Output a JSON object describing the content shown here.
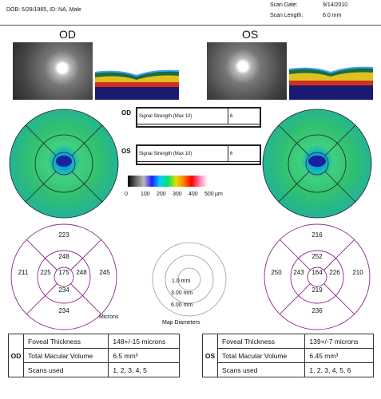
{
  "header": {
    "patient_line": "DOB: 5/28/1965, ID: NA, Male",
    "scan_date_label": "Scan Date:",
    "scan_date_value": "9/14/2010",
    "scan_length_label": "Scan Length:",
    "scan_length_value": "6.0 mm"
  },
  "od": {
    "label": "OD",
    "signal_label": "Signal Strength (Max 10)",
    "signal_value": "6",
    "grid": {
      "center": "175",
      "inner_top": "248",
      "inner_left": "225",
      "inner_right": "248",
      "inner_bottom": "234",
      "outer_top": "223",
      "outer_left": "211",
      "outer_right": "245",
      "outer_bottom": "234"
    },
    "stats": {
      "foveal_label": "Foveal Thickness",
      "foveal_value": "148+/-15 microns",
      "volume_label": "Total Macular Volume",
      "volume_value": "6.5 mm³",
      "scans_label": "Scans used",
      "scans_value": "1, 2, 3, 4, 5"
    }
  },
  "os": {
    "label": "OS",
    "signal_label": "Signal Strength (Max 10)",
    "signal_value": "6",
    "grid": {
      "center": "164",
      "inner_top": "252",
      "inner_left": "243",
      "inner_right": "226",
      "inner_bottom": "219",
      "outer_top": "216",
      "outer_left": "250",
      "outer_right": "210",
      "outer_bottom": "236"
    },
    "stats": {
      "foveal_label": "Foveal Thickness",
      "foveal_value": "139+/-7 microns",
      "volume_label": "Total Macular Volume",
      "volume_value": "6.45 mm³",
      "scans_label": "Scans used",
      "scans_value": "1, 2, 3, 4, 5, 6"
    }
  },
  "scale": {
    "ticks": [
      "0",
      "100",
      "200",
      "300",
      "400",
      "500"
    ],
    "unit": "µm",
    "colors": [
      "#000000",
      "#666666",
      "#bbbbbb",
      "#2020ff",
      "#00d0ff",
      "#00e070",
      "#e0e000",
      "#ff8000",
      "#ff0000",
      "#ff80b0",
      "#ffffff"
    ]
  },
  "legend": {
    "microns": "Microns",
    "map_diameters": "Map Diameters",
    "d1": "1.0 mm",
    "d2": "3.00 mm",
    "d3": "6.00 mm"
  }
}
